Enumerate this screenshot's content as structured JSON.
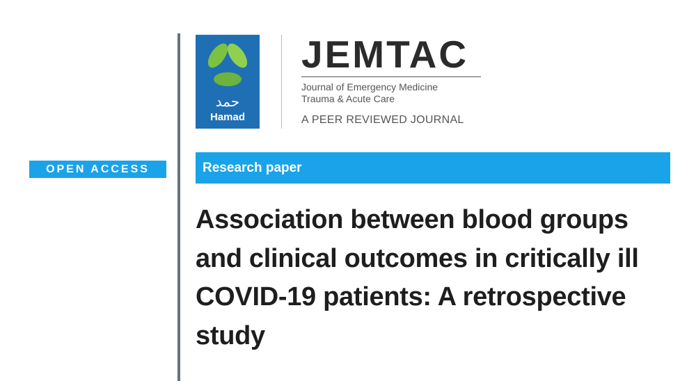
{
  "logo": {
    "arabic": "حمد",
    "name": "Hamad",
    "icon": "leaf-logo-icon",
    "color": "#1f6fb5",
    "leaf_color": "#7cc242"
  },
  "journal": {
    "title": "JEMTAC",
    "subtitle_line1": "Journal of Emergency Medicine",
    "subtitle_line2": "Trauma & Acute Care",
    "tagline": "A PEER REVIEWED JOURNAL"
  },
  "badge": {
    "open_access": "OPEN ACCESS",
    "color": "#1aa3e8"
  },
  "article": {
    "type": "Research paper",
    "title_lines": [
      "Association between blood groups",
      "and clinical outcomes in critically ill",
      "COVID-19 patients: A retrospective",
      "study"
    ]
  }
}
